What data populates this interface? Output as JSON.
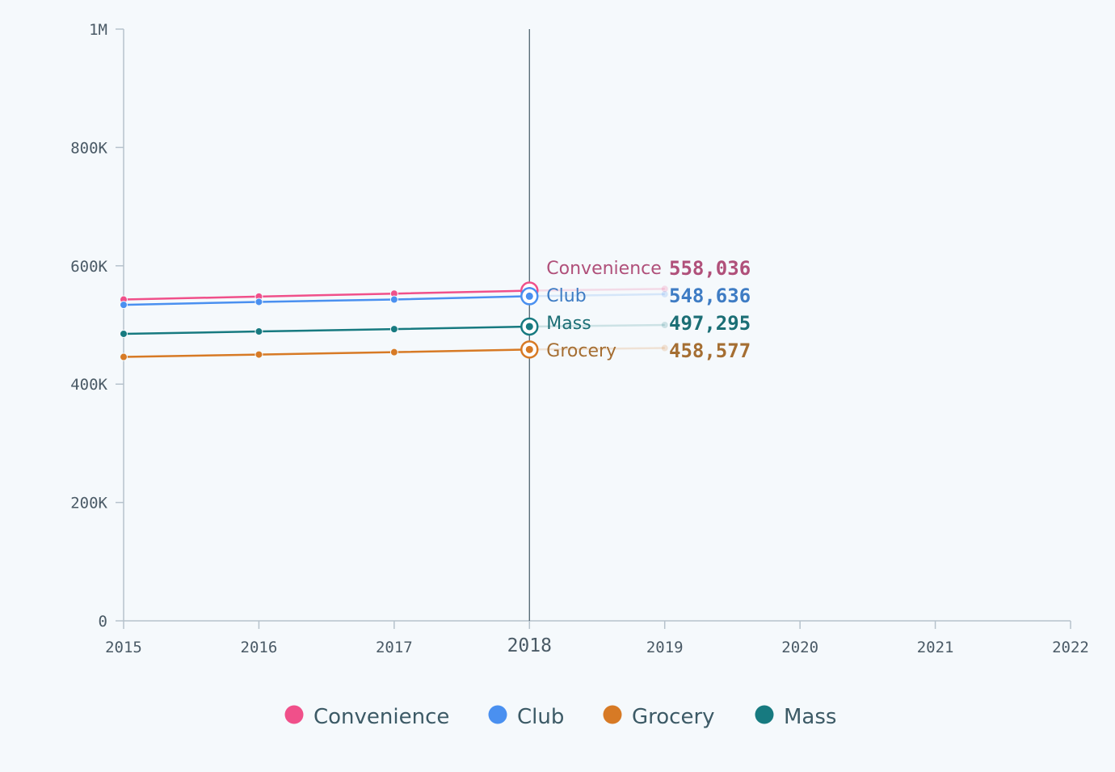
{
  "chart_data": {
    "type": "line",
    "x": [
      2015,
      2016,
      2017,
      2018,
      2019
    ],
    "x_ticks": [
      "2015",
      "2016",
      "2017",
      "2018",
      "2019",
      "2020",
      "2021",
      "2022"
    ],
    "xlim": [
      2015,
      2022
    ],
    "ylim": [
      0,
      1000000
    ],
    "y_ticks": [
      {
        "value": 0,
        "label": "0"
      },
      {
        "value": 200000,
        "label": "200K"
      },
      {
        "value": 400000,
        "label": "400K"
      },
      {
        "value": 600000,
        "label": "600K"
      },
      {
        "value": 800000,
        "label": "800K"
      },
      {
        "value": 1000000,
        "label": "1M"
      }
    ],
    "hover_x": 2018,
    "hover_label": "2018",
    "grid": false,
    "legend_position": "bottom",
    "series": [
      {
        "name": "Convenience",
        "color": "#f0508a",
        "label_color": "#b0507a",
        "values": [
          543000,
          548000,
          553000,
          558036,
          561000
        ],
        "hover_value": "558,036"
      },
      {
        "name": "Club",
        "color": "#4a90f0",
        "label_color": "#3e7cc4",
        "values": [
          534000,
          539000,
          543000,
          548636,
          552000
        ],
        "hover_value": "548,636"
      },
      {
        "name": "Mass",
        "color": "#177a80",
        "label_color": "#1b6e75",
        "values": [
          485000,
          489000,
          493000,
          497295,
          500000
        ],
        "hover_value": "497,295"
      },
      {
        "name": "Grocery",
        "color": "#d77a25",
        "label_color": "#a56e32",
        "values": [
          446000,
          450000,
          454000,
          458577,
          461000
        ],
        "hover_value": "458,577"
      }
    ],
    "legend_order": [
      "Convenience",
      "Club",
      "Grocery",
      "Mass"
    ]
  }
}
